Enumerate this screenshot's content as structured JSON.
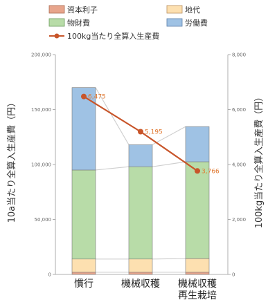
{
  "chart_data": {
    "type": "bar",
    "categories": [
      "慣行",
      "機械収穫",
      "機械収穫\n再生栽培"
    ],
    "series": [
      {
        "name": "資本利子",
        "values": [
          2000,
          2000,
          2000
        ],
        "color": "#e8a58c"
      },
      {
        "name": "地代",
        "values": [
          12000,
          12000,
          12500
        ],
        "color": "#fde0b0"
      },
      {
        "name": "物財費",
        "values": [
          81000,
          84000,
          88000
        ],
        "color": "#b8dca8"
      },
      {
        "name": "労働費",
        "values": [
          75000,
          20000,
          32000
        ],
        "color": "#9fc2e4"
      }
    ],
    "line_series": {
      "name": "100kg当たり全算入生産費",
      "values": [
        6475,
        5195,
        3766
      ],
      "labels": [
        "6,475",
        "5,195",
        "3,766"
      ],
      "color": "#c8552a"
    },
    "ylabel": "10a当たり全算入生産費（円）",
    "y2label": "100kg当たり全算入生産費（円）",
    "ylim": [
      0,
      200000
    ],
    "y2lim": [
      0,
      8000
    ],
    "yticks": [
      "0",
      "50,000",
      "100,000",
      "150,000",
      "200,000"
    ],
    "y2ticks": [
      "0",
      "2,000",
      "4,000",
      "6,000",
      "8,000"
    ],
    "grid": false,
    "legend_position": "top"
  }
}
